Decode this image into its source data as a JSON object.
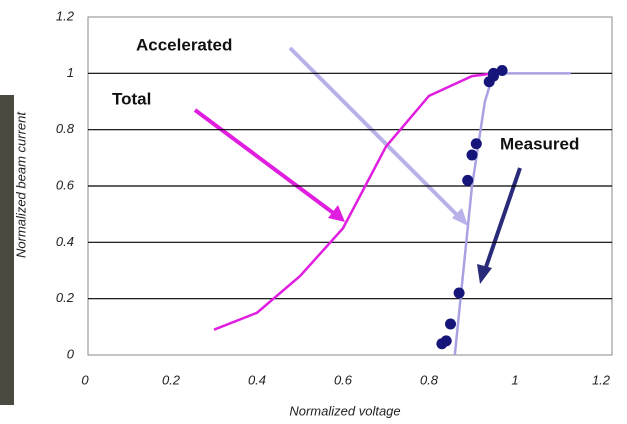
{
  "chart_data": {
    "type": "line",
    "x_label": "Normalized voltage",
    "y_label": "Normalized beam current",
    "xlim": [
      0,
      1.2
    ],
    "ylim": [
      0,
      1.2
    ],
    "xticks": [
      0,
      0.2,
      0.4,
      0.6,
      0.8,
      1,
      1.2
    ],
    "yticks": [
      0,
      0.2,
      0.4,
      0.6,
      0.8,
      1,
      1.2
    ],
    "grid": true,
    "annotations": [
      "Accelerated",
      "Total",
      "Measured"
    ],
    "series": [
      {
        "name": "Total",
        "color": "#e01ee0",
        "style": "line",
        "x": [
          0.3,
          0.4,
          0.5,
          0.6,
          0.7,
          0.8,
          0.9,
          0.95
        ],
        "values": [
          0.09,
          0.15,
          0.28,
          0.45,
          0.74,
          0.92,
          0.99,
          1.0
        ]
      },
      {
        "name": "Accelerated",
        "color": "#a9a2e2",
        "style": "line",
        "x": [
          0.86,
          0.88,
          0.9,
          0.93,
          0.95,
          1.13
        ],
        "values": [
          0.0,
          0.3,
          0.6,
          0.9,
          1.0,
          1.0
        ]
      },
      {
        "name": "Measured",
        "color": "#15157a",
        "style": "marker",
        "x": [
          0.83,
          0.84,
          0.85,
          0.87,
          0.89,
          0.9,
          0.91,
          0.94,
          0.95,
          0.95,
          0.97
        ],
        "values": [
          0.04,
          0.05,
          0.11,
          0.22,
          0.62,
          0.71,
          0.75,
          0.97,
          0.99,
          1.0,
          1.01
        ]
      }
    ]
  }
}
